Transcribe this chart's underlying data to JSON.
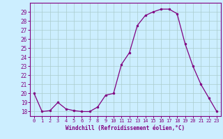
{
  "x": [
    0,
    1,
    2,
    3,
    4,
    5,
    6,
    7,
    8,
    9,
    10,
    11,
    12,
    13,
    14,
    15,
    16,
    17,
    18,
    19,
    20,
    21,
    22,
    23
  ],
  "y": [
    20,
    18,
    18.1,
    19,
    18.3,
    18.1,
    18,
    18,
    18.5,
    19.8,
    20,
    23.2,
    24.5,
    27.5,
    28.6,
    29.0,
    29.3,
    29.3,
    28.8,
    25.5,
    23,
    21,
    19.5,
    18
  ],
  "line_color": "#800080",
  "marker_color": "#800080",
  "bg_color": "#cceeff",
  "grid_color": "#aacccc",
  "text_color": "#800080",
  "xlabel": "Windchill (Refroidissement éolien,°C)",
  "xlim": [
    -0.5,
    23.5
  ],
  "ylim": [
    17.5,
    30.0
  ],
  "yticks": [
    18,
    19,
    20,
    21,
    22,
    23,
    24,
    25,
    26,
    27,
    28,
    29
  ],
  "xticks": [
    0,
    1,
    2,
    3,
    4,
    5,
    6,
    7,
    8,
    9,
    10,
    11,
    12,
    13,
    14,
    15,
    16,
    17,
    18,
    19,
    20,
    21,
    22,
    23
  ]
}
